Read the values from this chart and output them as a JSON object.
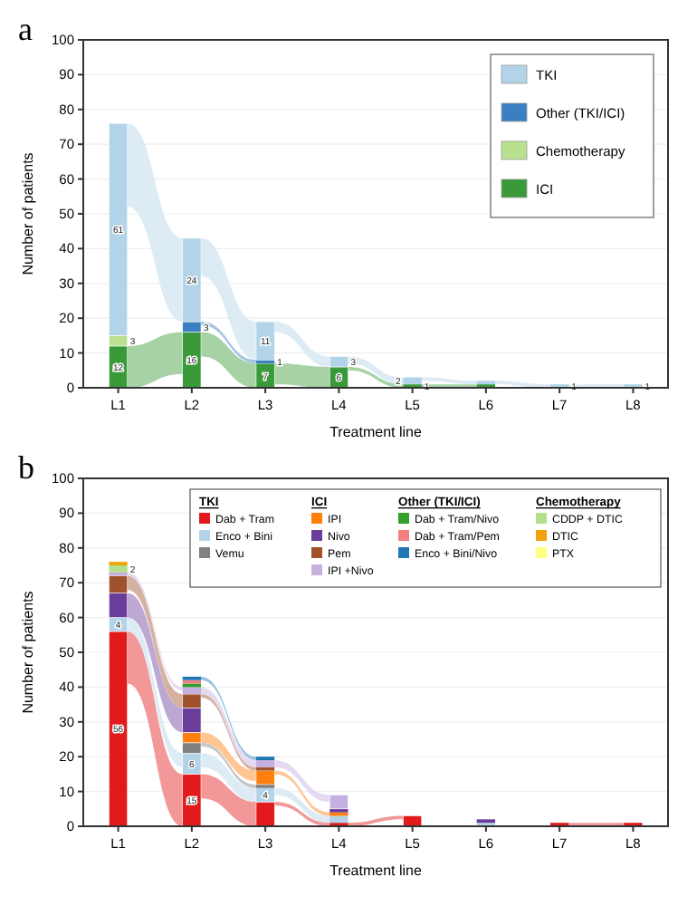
{
  "chart_data": [
    {
      "type": "bar",
      "title": "a",
      "stacked": true,
      "xlabel": "Treatment line",
      "ylabel": "Number of patients",
      "categories": [
        "L1",
        "L2",
        "L3",
        "L4",
        "L5",
        "L6",
        "L7",
        "L8"
      ],
      "ylim": [
        0,
        100
      ],
      "yticks": [
        0,
        10,
        20,
        30,
        40,
        50,
        60,
        70,
        80,
        90,
        100
      ],
      "grid": "y",
      "legend": "top right",
      "series": [
        {
          "name": "ICI",
          "color": "#3a9a3a",
          "values": [
            12,
            16,
            7,
            6,
            1,
            1,
            0,
            0
          ],
          "value_labels": [
            "12",
            "16",
            "7",
            "6",
            "1",
            null,
            null,
            null
          ]
        },
        {
          "name": "Chemotherapy",
          "color": "#b8e08f",
          "values": [
            3,
            0,
            0,
            0,
            0,
            0,
            0,
            0
          ],
          "value_labels": [
            "3",
            null,
            null,
            null,
            null,
            null,
            null,
            null
          ]
        },
        {
          "name": "Other (TKI/ICI)",
          "color": "#3a7fc1",
          "values": [
            0,
            3,
            1,
            0,
            0,
            0,
            0,
            0
          ],
          "value_labels": [
            null,
            "3",
            "1",
            null,
            null,
            null,
            null,
            null
          ]
        },
        {
          "name": "TKI",
          "color": "#b3d3e8",
          "values": [
            61,
            24,
            11,
            3,
            2,
            1,
            1,
            1
          ],
          "value_labels": [
            "61",
            "24",
            "11",
            "3",
            "2",
            null,
            "1",
            "1"
          ]
        }
      ]
    },
    {
      "type": "bar",
      "title": "b",
      "stacked": true,
      "xlabel": "Treatment line",
      "ylabel": "Number of patients",
      "categories": [
        "L1",
        "L2",
        "L3",
        "L4",
        "L5",
        "L6",
        "L7",
        "L8"
      ],
      "ylim": [
        0,
        100
      ],
      "yticks": [
        0,
        10,
        20,
        30,
        40,
        50,
        60,
        70,
        80,
        90,
        100
      ],
      "grid": "y",
      "legend": "top right",
      "annotations": [
        "TKI",
        "ICI",
        "Other (TKI/ICI)",
        "Chemotherapy"
      ],
      "series": [
        {
          "name": "Dab + Tram",
          "color": "#e31a1c",
          "values": [
            56,
            15,
            7,
            1,
            3,
            0,
            1,
            1
          ],
          "value_labels": [
            "56",
            "15",
            null,
            null,
            null,
            null,
            null,
            null
          ]
        },
        {
          "name": "Enco + Bini",
          "color": "#b3d3e8",
          "values": [
            4,
            6,
            4,
            2,
            0,
            1,
            0,
            0
          ],
          "value_labels": [
            "4",
            "6",
            "4",
            null,
            null,
            null,
            null,
            null
          ]
        },
        {
          "name": "Vemu",
          "color": "#808080",
          "values": [
            0,
            3,
            1,
            0,
            0,
            0,
            0,
            0
          ]
        },
        {
          "name": "IPI",
          "color": "#ff7f0e",
          "values": [
            0,
            3,
            4,
            1,
            0,
            0,
            0,
            0
          ]
        },
        {
          "name": "Nivo",
          "color": "#6a3d9a",
          "values": [
            7,
            7,
            0,
            1,
            0,
            1,
            0,
            0
          ]
        },
        {
          "name": "Pem",
          "color": "#a0522d",
          "values": [
            5,
            4,
            1,
            0,
            0,
            0,
            0,
            0
          ]
        },
        {
          "name": "IPI +Nivo",
          "color": "#c5b0e0",
          "values": [
            1,
            2,
            2,
            4,
            0,
            0,
            0,
            0
          ]
        },
        {
          "name": "Dab + Tram/Nivo",
          "color": "#33a02c",
          "values": [
            0,
            1,
            0,
            0,
            0,
            0,
            0,
            0
          ]
        },
        {
          "name": "Dab + Tram/Pem",
          "color": "#f08080",
          "values": [
            0,
            1,
            0,
            0,
            0,
            0,
            0,
            0
          ]
        },
        {
          "name": "Enco + Bini/Nivo",
          "color": "#1f78b4",
          "values": [
            0,
            1,
            1,
            0,
            0,
            0,
            0,
            0
          ]
        },
        {
          "name": "CDDP + DTIC",
          "color": "#b2df8a",
          "values": [
            2,
            0,
            0,
            0,
            0,
            0,
            0,
            0
          ],
          "value_labels": [
            "2",
            null,
            null,
            null,
            null,
            null,
            null,
            null
          ]
        },
        {
          "name": "DTIC",
          "color": "#f0a30a",
          "values": [
            1,
            0,
            0,
            0,
            0,
            0,
            0,
            0
          ]
        },
        {
          "name": "PTX",
          "color": "#ffff80",
          "values": [
            0,
            0,
            0,
            0,
            0,
            0,
            0,
            0
          ]
        }
      ]
    }
  ]
}
